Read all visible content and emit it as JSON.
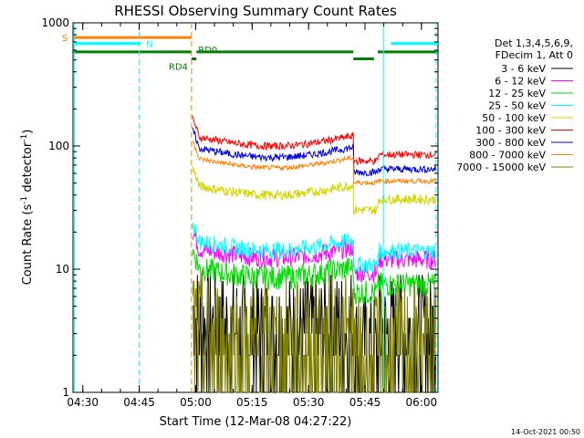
{
  "chart_data": {
    "type": "line",
    "title": "RHESSI Observing Summary Count Rates",
    "xlabel": "Start Time (12-Mar-08 04:27:22)",
    "ylabel_main": "Count Rate (s",
    "ylabel_sup": "-1",
    "ylabel_tail": " detector",
    "ylabel_sup2": "-1",
    "ylabel_end": ")",
    "y_scale": "log",
    "ylim": [
      1,
      1000
    ],
    "xlim_minutes": [
      0,
      97
    ],
    "x_ticks": [
      {
        "m": 2.6,
        "label": "04:30"
      },
      {
        "m": 17.6,
        "label": "04:45"
      },
      {
        "m": 32.6,
        "label": "05:00"
      },
      {
        "m": 47.6,
        "label": "05:15"
      },
      {
        "m": 62.6,
        "label": "05:30"
      },
      {
        "m": 77.6,
        "label": "05:45"
      },
      {
        "m": 92.6,
        "label": "06:00"
      }
    ],
    "y_ticks": [
      {
        "v": 1,
        "label": "1"
      },
      {
        "v": 10,
        "label": "10"
      },
      {
        "v": 100,
        "label": "100"
      },
      {
        "v": 1000,
        "label": "1000"
      }
    ],
    "legend_header": [
      "Det 1,3,4,5,6,9,",
      "FDecim 1, Att 0"
    ],
    "series": [
      {
        "name": "3 - 6 keV",
        "color": "#000000",
        "v1": 3,
        "v2": 3,
        "noise": 0.5
      },
      {
        "name": "6 - 12 keV",
        "color": "#ff00ff",
        "v1": 13,
        "v2": 12,
        "noise": 0.08
      },
      {
        "name": "12 - 25 keV",
        "color": "#00dd00",
        "v1": 9,
        "v2": 7.5,
        "noise": 0.1
      },
      {
        "name": "25 - 50 keV",
        "color": "#00ffff",
        "v1": 15,
        "v2": 14,
        "noise": 0.07
      },
      {
        "name": "50 - 100 keV",
        "color": "#d4d400",
        "v1": 42,
        "v2": 37,
        "noise": 0.04
      },
      {
        "name": "100 - 300 keV",
        "color": "#ff0000",
        "v1": 105,
        "v2": 85,
        "noise": 0.03
      },
      {
        "name": "300 - 800 keV",
        "color": "#0000dd",
        "v1": 85,
        "v2": 65,
        "noise": 0.03
      },
      {
        "name": "800 - 7000 keV",
        "color": "#ff8000",
        "v1": 70,
        "v2": 52,
        "noise": 0.02
      },
      {
        "name": "7000 - 15000 keV",
        "color": "#808000",
        "v1": 2.2,
        "v2": 2,
        "noise": 0.6
      }
    ],
    "flags": [
      {
        "label": "S",
        "color": "#ff8000",
        "y": 760,
        "segments": [
          [
            0,
            31.5
          ]
        ]
      },
      {
        "label": "N",
        "color": "#00ffff",
        "y": 680,
        "segments": [
          [
            0,
            18
          ],
          [
            84.5,
            97
          ]
        ]
      },
      {
        "label": "RD4",
        "color": "#008000",
        "y": 510,
        "segments": [
          [
            31.5,
            32.8
          ],
          [
            74.5,
            80
          ]
        ]
      },
      {
        "label": "RD0",
        "color": "#008000",
        "y": 580,
        "segments": [
          [
            0,
            31.5
          ],
          [
            32.8,
            74.5
          ],
          [
            81,
            97
          ]
        ]
      }
    ],
    "vlines": [
      {
        "m": 0.4,
        "color": "#00ffff",
        "dash": false
      },
      {
        "m": 17.6,
        "color": "#00ffff",
        "dash": true
      },
      {
        "m": 31.5,
        "color": "#ff8000",
        "dash": true
      },
      {
        "m": 82.5,
        "color": "#00ffff",
        "dash": false
      },
      {
        "m": 96.5,
        "color": "#00ffff",
        "dash": true
      }
    ],
    "data_start_m": 31.8,
    "gap_start_m": 74.5,
    "gap_end_m": 81
  },
  "footer": {
    "date": "14-Oct-2021 00:50"
  }
}
